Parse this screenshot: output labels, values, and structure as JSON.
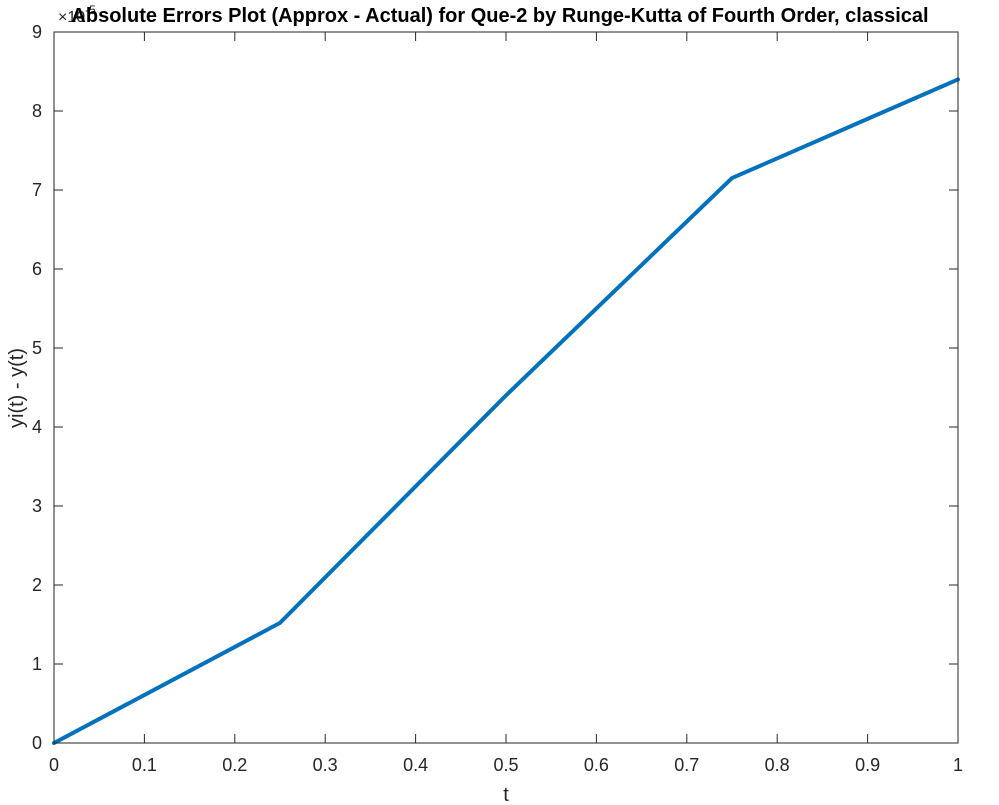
{
  "chart_data": {
    "type": "line",
    "title": "Absolute Errors Plot (Approx - Actual) for Que-2 by Runge-Kutta of Fourth Order, classical",
    "xlabel": "t",
    "ylabel": "yi(t) - y(t)",
    "y_exponent_label": "×10",
    "y_exponent": "-5",
    "xlim": [
      0,
      1
    ],
    "ylim": [
      0,
      9
    ],
    "x_ticks": [
      "0",
      "0.1",
      "0.2",
      "0.3",
      "0.4",
      "0.5",
      "0.6",
      "0.7",
      "0.8",
      "0.9",
      "1"
    ],
    "y_ticks": [
      "0",
      "1",
      "2",
      "3",
      "4",
      "5",
      "6",
      "7",
      "8",
      "9"
    ],
    "grid": false,
    "series": [
      {
        "x": [
          0,
          0.25,
          0.5,
          0.75,
          1.0
        ],
        "y": [
          0,
          1.52,
          4.4,
          7.15,
          8.4
        ],
        "color": "#0072BD"
      }
    ]
  }
}
